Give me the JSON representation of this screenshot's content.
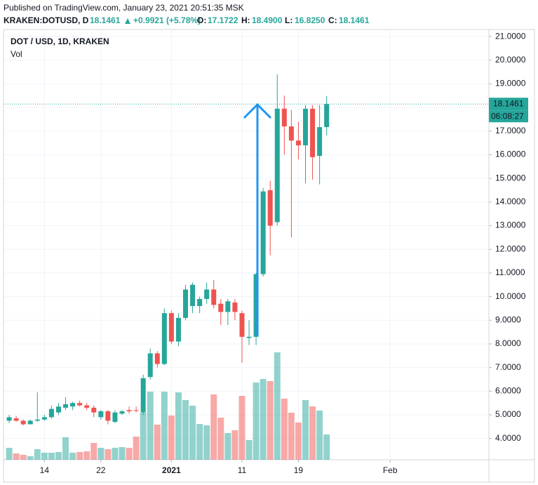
{
  "header": {
    "published": "Published on TradingView.com, January 23, 2021 20:51:35 MSK",
    "symbol": "KRAKEN:DOTUSD, D",
    "last": "18.1461",
    "change": "+0.9921 (+5.78%)",
    "ohlc": [
      {
        "label": "O:",
        "value": "17.1722"
      },
      {
        "label": "H:",
        "value": "18.4900"
      },
      {
        "label": "L:",
        "value": "16.8250"
      },
      {
        "label": "C:",
        "value": "18.1461"
      }
    ]
  },
  "chart_data": {
    "type": "candlestick",
    "title": "DOT / USD, 1D, KRAKEN",
    "volume_label": "Vol",
    "countdown": "06:08:27",
    "up_color": "#26a69a",
    "down_color": "#ef5350",
    "x": [
      "2020-12-09",
      "2020-12-10",
      "2020-12-11",
      "2020-12-12",
      "2020-12-13",
      "2020-12-14",
      "2020-12-15",
      "2020-12-16",
      "2020-12-17",
      "2020-12-18",
      "2020-12-19",
      "2020-12-20",
      "2020-12-21",
      "2020-12-22",
      "2020-12-23",
      "2020-12-24",
      "2020-12-25",
      "2020-12-26",
      "2020-12-27",
      "2020-12-28",
      "2020-12-29",
      "2020-12-30",
      "2020-12-31",
      "2021-01-01",
      "2021-01-02",
      "2021-01-03",
      "2021-01-04",
      "2021-01-05",
      "2021-01-06",
      "2021-01-07",
      "2021-01-08",
      "2021-01-09",
      "2021-01-10",
      "2021-01-11",
      "2021-01-12",
      "2021-01-13",
      "2021-01-14",
      "2021-01-15",
      "2021-01-16",
      "2021-01-17",
      "2021-01-18",
      "2021-01-19",
      "2021-01-20",
      "2021-01-21",
      "2021-01-22",
      "2021-01-23"
    ],
    "open": [
      4.75,
      4.85,
      4.75,
      4.6,
      4.75,
      4.8,
      4.9,
      5.1,
      5.3,
      5.35,
      5.5,
      5.4,
      5.3,
      4.9,
      5.15,
      4.7,
      5.05,
      5.2,
      5.2,
      5.1,
      6.6,
      7.6,
      7.15,
      9.3,
      8.1,
      9.1,
      9.6,
      9.6,
      9.9,
      10.3,
      9.7,
      9.35,
      9.75,
      9.3,
      8.25,
      8.3,
      10.95,
      14.5,
      13.15,
      17.95,
      17.2,
      16.6,
      16.4,
      17.95,
      15.95,
      17.1722
    ],
    "high": [
      5.0,
      4.95,
      4.8,
      4.8,
      5.95,
      5.0,
      5.4,
      5.5,
      5.75,
      5.55,
      5.6,
      5.5,
      5.4,
      5.2,
      5.2,
      5.2,
      5.2,
      5.35,
      5.35,
      6.7,
      7.8,
      7.7,
      9.5,
      9.4,
      9.3,
      10.5,
      10.6,
      10.0,
      10.6,
      10.7,
      9.9,
      9.9,
      9.9,
      9.4,
      9.0,
      11.0,
      14.6,
      14.9,
      19.4,
      18.5,
      17.9,
      17.4,
      18.1,
      18.1,
      18.1,
      18.49
    ],
    "low": [
      4.65,
      4.7,
      4.55,
      4.6,
      4.7,
      4.75,
      4.85,
      5.0,
      5.2,
      5.2,
      5.35,
      5.2,
      4.9,
      4.8,
      4.6,
      4.65,
      5.0,
      5.05,
      5.1,
      5.0,
      6.5,
      7.0,
      7.1,
      8.0,
      7.9,
      9.0,
      9.3,
      9.3,
      9.7,
      9.5,
      8.8,
      8.8,
      9.0,
      7.2,
      7.95,
      7.95,
      10.85,
      11.75,
      13.0,
      16.0,
      12.5,
      15.8,
      14.8,
      14.95,
      14.75,
      16.825
    ],
    "close": [
      4.9,
      4.75,
      4.6,
      4.75,
      4.8,
      4.9,
      5.25,
      5.35,
      5.45,
      5.5,
      5.4,
      5.3,
      5.1,
      5.15,
      4.75,
      5.1,
      5.15,
      5.15,
      5.18,
      6.55,
      7.6,
      7.15,
      9.3,
      8.1,
      9.1,
      10.3,
      10.5,
      9.9,
      10.3,
      9.65,
      9.35,
      9.8,
      9.35,
      8.3,
      8.3,
      10.95,
      14.45,
      13.0,
      17.95,
      17.2,
      16.6,
      16.4,
      17.95,
      15.9,
      17.17,
      18.1461
    ],
    "volume": [
      17,
      9,
      7,
      5,
      15,
      10,
      10,
      11,
      32,
      10,
      11,
      12,
      24,
      17,
      15,
      17,
      18,
      17,
      33,
      67,
      97,
      50,
      97,
      63,
      96,
      85,
      77,
      51,
      49,
      93,
      60,
      38,
      42,
      91,
      28,
      110,
      115,
      112,
      153,
      87,
      67,
      53,
      85,
      76,
      70,
      36
    ],
    "xlim": [
      "2020-12-08",
      "2021-02-15"
    ],
    "xticks": [
      {
        "value": "2020-12-14",
        "label": "14"
      },
      {
        "value": "2020-12-22",
        "label": "22"
      },
      {
        "value": "2021-01-01",
        "label": "2021"
      },
      {
        "value": "2021-01-11",
        "label": "11"
      },
      {
        "value": "2021-01-19",
        "label": "19"
      },
      {
        "value": "2021-02-01",
        "label": "Feb"
      }
    ],
    "ylim": [
      3.1,
      21.3
    ],
    "yticks": [
      {
        "value": 4,
        "label": "4.0000"
      },
      {
        "value": 5,
        "label": "5.0000"
      },
      {
        "value": 6,
        "label": "6.0000"
      },
      {
        "value": 7,
        "label": "7.0000"
      },
      {
        "value": 8,
        "label": "8.0000"
      },
      {
        "value": 9,
        "label": "9.0000"
      },
      {
        "value": 10,
        "label": "10.0000"
      },
      {
        "value": 11,
        "label": "11.0000"
      },
      {
        "value": 12,
        "label": "12.0000"
      },
      {
        "value": 13,
        "label": "13.0000"
      },
      {
        "value": 14,
        "label": "14.0000"
      },
      {
        "value": 15,
        "label": "15.0000"
      },
      {
        "value": 16,
        "label": "16.0000"
      },
      {
        "value": 17,
        "label": "17.0000"
      },
      {
        "value": 18,
        "label": "18.0000"
      },
      {
        "value": 19,
        "label": "19.0000"
      },
      {
        "value": 20,
        "label": "20.0000"
      },
      {
        "value": 21,
        "label": "21.0000"
      }
    ],
    "grid": true
  }
}
